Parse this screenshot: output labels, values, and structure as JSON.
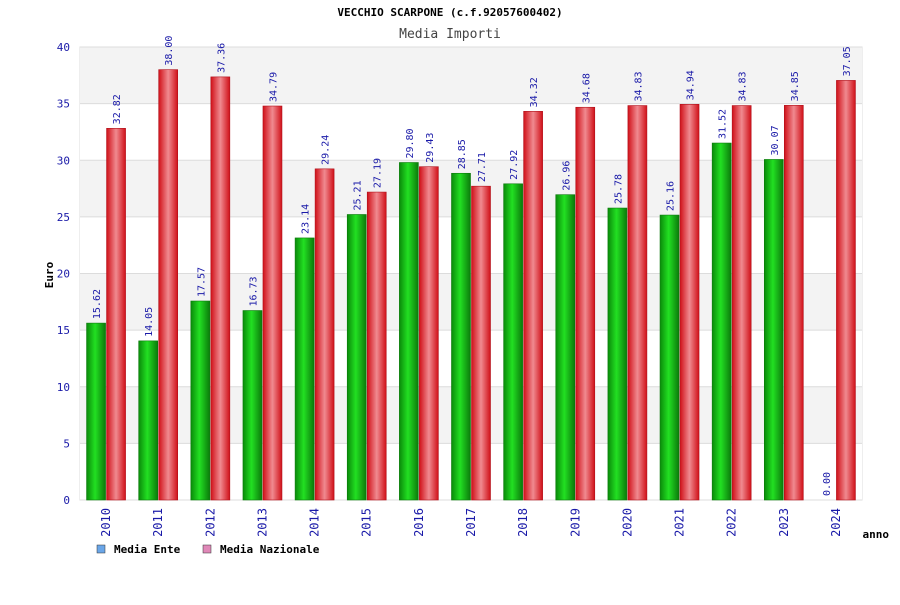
{
  "chart_data": {
    "type": "bar",
    "title": "VECCHIO SCARPONE (c.f.92057600402)",
    "subtitle": "Media Importi",
    "xlabel": "anno",
    "ylabel": "Euro",
    "ylim": [
      0,
      40
    ],
    "yticks": [
      0,
      5,
      10,
      15,
      20,
      25,
      30,
      35,
      40
    ],
    "grid": true,
    "legend_position": "bottom-left",
    "categories": [
      "2010",
      "2011",
      "2012",
      "2013",
      "2014",
      "2015",
      "2016",
      "2017",
      "2018",
      "2019",
      "2020",
      "2021",
      "2022",
      "2023",
      "2024"
    ],
    "series": [
      {
        "name": "Media Ente",
        "color": "#11b411",
        "legend_color": "#6aa6e8",
        "values": [
          15.62,
          14.05,
          17.57,
          16.73,
          23.14,
          25.21,
          29.8,
          28.85,
          27.92,
          26.96,
          25.78,
          25.16,
          31.52,
          30.07,
          0.0
        ],
        "labels": [
          "15.62",
          "14.05",
          "17.57",
          "16.73",
          "23.14",
          "25.21",
          "29.80",
          "28.85",
          "27.92",
          "26.96",
          "25.78",
          "25.16",
          "31.52",
          "30.07",
          "0.00"
        ]
      },
      {
        "name": "Media Nazionale",
        "color": "#e8202a",
        "legend_color": "#e088b8",
        "values": [
          32.82,
          38.0,
          37.36,
          34.79,
          29.24,
          27.19,
          29.43,
          27.71,
          34.32,
          34.68,
          34.83,
          34.94,
          34.83,
          34.85,
          37.05
        ],
        "labels": [
          "32.82",
          "38.00",
          "37.36",
          "34.79",
          "29.24",
          "27.19",
          "29.43",
          "27.71",
          "34.32",
          "34.68",
          "34.83",
          "34.94",
          "34.83",
          "34.85",
          "37.05"
        ]
      }
    ]
  }
}
